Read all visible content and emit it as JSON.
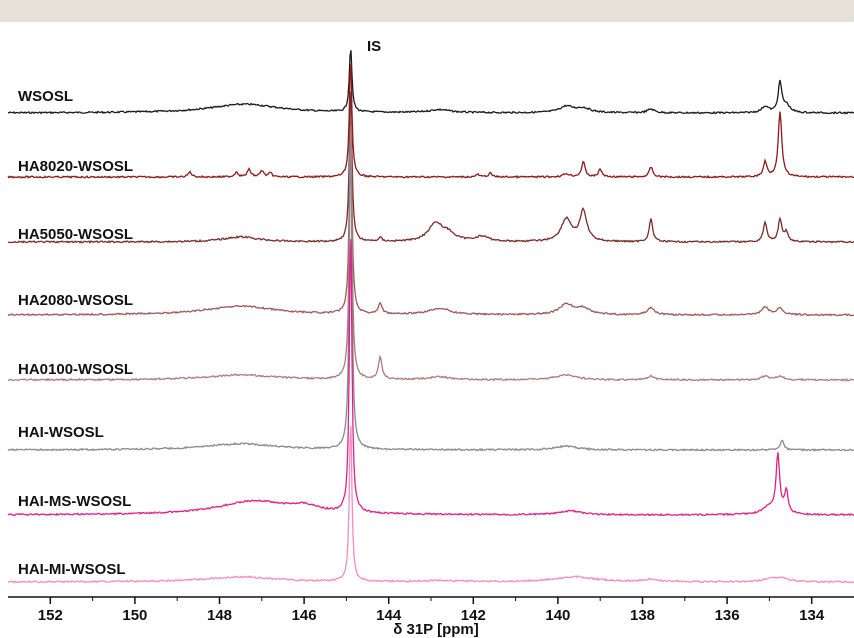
{
  "chart_data": {
    "type": "line",
    "title": "",
    "xlabel": "δ 31P [ppm]",
    "ylabel": "",
    "xlim": [
      153,
      133
    ],
    "x_reversed": true,
    "x_ticks": [
      152,
      150,
      148,
      146,
      144,
      142,
      140,
      138,
      136,
      134
    ],
    "grid": false,
    "legend": "none",
    "annotations": [
      {
        "text": "IS",
        "x": 144.9
      }
    ],
    "baseline_x": [
      133,
      153
    ],
    "series": [
      {
        "name": "WSOSL",
        "color": "#1a1a1a",
        "peaks": [
          {
            "x": 147.4,
            "h": 0.35,
            "w": 1.0
          },
          {
            "x": 142.8,
            "h": 0.12,
            "w": 0.3
          },
          {
            "x": 139.8,
            "h": 0.25,
            "w": 0.2
          },
          {
            "x": 139.4,
            "h": 0.18,
            "w": 0.2
          },
          {
            "x": 137.8,
            "h": 0.15,
            "w": 0.1
          },
          {
            "x": 135.1,
            "h": 0.25,
            "w": 0.1
          },
          {
            "x": 134.75,
            "h": 1.2,
            "w": 0.05
          },
          {
            "x": 134.6,
            "h": 0.3,
            "w": 0.1
          }
        ]
      },
      {
        "name": "HA8020-WSOSL",
        "color": "#8b1a1a",
        "peaks": [
          {
            "x": 148.7,
            "h": 0.2,
            "w": 0.05
          },
          {
            "x": 147.6,
            "h": 0.2,
            "w": 0.05
          },
          {
            "x": 147.3,
            "h": 0.3,
            "w": 0.05
          },
          {
            "x": 147.0,
            "h": 0.25,
            "w": 0.05
          },
          {
            "x": 146.8,
            "h": 0.15,
            "w": 0.05
          },
          {
            "x": 141.9,
            "h": 0.1,
            "w": 0.05
          },
          {
            "x": 141.6,
            "h": 0.15,
            "w": 0.05
          },
          {
            "x": 139.8,
            "h": 0.12,
            "w": 0.1
          },
          {
            "x": 139.4,
            "h": 0.6,
            "w": 0.05
          },
          {
            "x": 139.0,
            "h": 0.3,
            "w": 0.05
          },
          {
            "x": 137.8,
            "h": 0.4,
            "w": 0.05
          },
          {
            "x": 135.1,
            "h": 0.6,
            "w": 0.05
          },
          {
            "x": 134.75,
            "h": 2.6,
            "w": 0.05
          }
        ]
      },
      {
        "name": "HA5050-WSOSL",
        "color": "#7a2a2a",
        "peaks": [
          {
            "x": 147.5,
            "h": 0.2,
            "w": 0.5
          },
          {
            "x": 144.2,
            "h": 0.15,
            "w": 0.05
          },
          {
            "x": 142.9,
            "h": 0.7,
            "w": 0.2
          },
          {
            "x": 142.6,
            "h": 0.3,
            "w": 0.2
          },
          {
            "x": 141.8,
            "h": 0.2,
            "w": 0.2
          },
          {
            "x": 139.8,
            "h": 0.9,
            "w": 0.15
          },
          {
            "x": 139.4,
            "h": 1.2,
            "w": 0.1
          },
          {
            "x": 137.8,
            "h": 0.9,
            "w": 0.05
          },
          {
            "x": 135.1,
            "h": 0.8,
            "w": 0.05
          },
          {
            "x": 134.75,
            "h": 0.9,
            "w": 0.05
          },
          {
            "x": 134.6,
            "h": 0.4,
            "w": 0.05
          }
        ]
      },
      {
        "name": "HA2080-WSOSL",
        "color": "#a05a5a",
        "peaks": [
          {
            "x": 147.5,
            "h": 0.35,
            "w": 1.0
          },
          {
            "x": 144.2,
            "h": 0.45,
            "w": 0.05
          },
          {
            "x": 142.8,
            "h": 0.25,
            "w": 0.3
          },
          {
            "x": 139.8,
            "h": 0.4,
            "w": 0.2
          },
          {
            "x": 139.4,
            "h": 0.25,
            "w": 0.2
          },
          {
            "x": 137.8,
            "h": 0.3,
            "w": 0.1
          },
          {
            "x": 135.1,
            "h": 0.3,
            "w": 0.1
          },
          {
            "x": 134.75,
            "h": 0.25,
            "w": 0.1
          }
        ]
      },
      {
        "name": "HA0100-WSOSL",
        "color": "#b07b7b",
        "peaks": [
          {
            "x": 147.5,
            "h": 0.2,
            "w": 1.0
          },
          {
            "x": 144.2,
            "h": 0.9,
            "w": 0.05
          },
          {
            "x": 142.8,
            "h": 0.12,
            "w": 0.3
          },
          {
            "x": 139.8,
            "h": 0.2,
            "w": 0.3
          },
          {
            "x": 137.8,
            "h": 0.15,
            "w": 0.1
          },
          {
            "x": 135.1,
            "h": 0.15,
            "w": 0.1
          },
          {
            "x": 134.75,
            "h": 0.15,
            "w": 0.1
          }
        ]
      },
      {
        "name": "HAI-WSOSL",
        "color": "#8a8a8a",
        "peaks": [
          {
            "x": 147.5,
            "h": 0.25,
            "w": 1.0
          },
          {
            "x": 139.8,
            "h": 0.15,
            "w": 0.3
          },
          {
            "x": 134.7,
            "h": 0.4,
            "w": 0.05
          }
        ]
      },
      {
        "name": "HAI-MS-WSOSL",
        "color": "#e0208a",
        "peaks": [
          {
            "x": 147.2,
            "h": 0.55,
            "w": 1.0
          },
          {
            "x": 146.0,
            "h": 0.25,
            "w": 0.4
          },
          {
            "x": 139.7,
            "h": 0.15,
            "w": 0.3
          },
          {
            "x": 135.0,
            "h": 0.3,
            "w": 0.2
          },
          {
            "x": 134.8,
            "h": 2.3,
            "w": 0.05
          },
          {
            "x": 134.6,
            "h": 0.9,
            "w": 0.05
          }
        ]
      },
      {
        "name": "HAI-MI-WSOSL",
        "color": "#f28cc6",
        "peaks": [
          {
            "x": 147.5,
            "h": 0.2,
            "w": 1.0
          },
          {
            "x": 142.8,
            "h": 0.05,
            "w": 0.5
          },
          {
            "x": 139.6,
            "h": 0.2,
            "w": 0.6
          },
          {
            "x": 137.8,
            "h": 0.1,
            "w": 0.2
          },
          {
            "x": 135.0,
            "h": 0.1,
            "w": 0.2
          },
          {
            "x": 134.7,
            "h": 0.15,
            "w": 0.2
          }
        ]
      }
    ],
    "internal_standard": {
      "x": 144.9,
      "name": "IS"
    }
  }
}
